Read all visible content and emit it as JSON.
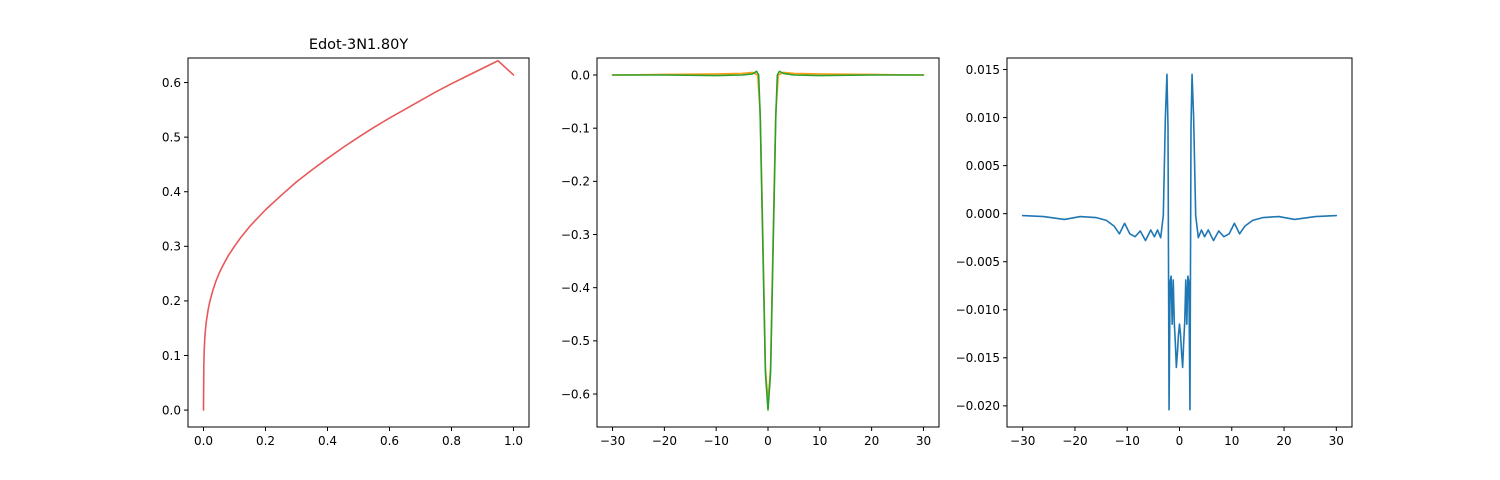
{
  "chart_data": [
    {
      "type": "line",
      "title": "Edot-3N1.80Y",
      "xlabel": "",
      "ylabel": "",
      "xlim": [
        -0.05,
        1.05
      ],
      "ylim": [
        -0.031,
        0.645
      ],
      "xticks": [
        0.0,
        0.2,
        0.4,
        0.6,
        0.8,
        1.0
      ],
      "xtick_labels": [
        "0.0",
        "0.2",
        "0.4",
        "0.6",
        "0.8",
        "1.0"
      ],
      "yticks": [
        0.0,
        0.1,
        0.2,
        0.3,
        0.4,
        0.5,
        0.6
      ],
      "ytick_labels": [
        "0.0",
        "0.1",
        "0.2",
        "0.3",
        "0.4",
        "0.5",
        "0.6"
      ],
      "grid": false,
      "legend": "none",
      "series": [
        {
          "color": "#e8585a",
          "x": [
            0,
            0.001,
            0.002,
            0.004,
            0.006,
            0.008,
            0.01,
            0.015,
            0.02,
            0.03,
            0.04,
            0.05,
            0.06,
            0.08,
            0.1,
            0.12,
            0.15,
            0.2,
            0.25,
            0.3,
            0.35,
            0.4,
            0.45,
            0.5,
            0.55,
            0.6,
            0.65,
            0.7,
            0.75,
            0.8,
            0.85,
            0.9,
            0.95,
            1.0
          ],
          "y": [
            0.0,
            0.08,
            0.105,
            0.13,
            0.145,
            0.157,
            0.166,
            0.184,
            0.198,
            0.219,
            0.236,
            0.25,
            0.262,
            0.283,
            0.3,
            0.316,
            0.337,
            0.367,
            0.393,
            0.418,
            0.44,
            0.461,
            0.481,
            0.5,
            0.518,
            0.535,
            0.551,
            0.567,
            0.583,
            0.598,
            0.612,
            0.626,
            0.64,
            0.614
          ]
        }
      ]
    },
    {
      "type": "line",
      "title": "",
      "xlabel": "",
      "ylabel": "",
      "xlim": [
        -33,
        33
      ],
      "ylim": [
        -0.662,
        0.032
      ],
      "xticks": [
        -30,
        -20,
        -10,
        0,
        10,
        20,
        30
      ],
      "xtick_labels": [
        "−30",
        "−20",
        "−10",
        "0",
        "10",
        "20",
        "30"
      ],
      "yticks": [
        0.0,
        -0.1,
        -0.2,
        -0.3,
        -0.4,
        -0.5,
        -0.6
      ],
      "ytick_labels": [
        "0.0",
        "−0.1",
        "−0.2",
        "−0.3",
        "−0.4",
        "−0.5",
        "−0.6"
      ],
      "grid": false,
      "legend": "none",
      "series": [
        {
          "color": "#ff9e1b",
          "x": [
            -30,
            -20,
            -10,
            -5,
            -3,
            -2,
            -1.5,
            -1,
            -0.5,
            0,
            0.5,
            1,
            1.5,
            2,
            3,
            5,
            10,
            20,
            30
          ],
          "y": [
            0.0,
            0.001,
            0.002,
            0.003,
            0.005,
            0.0,
            -0.07,
            -0.3,
            -0.55,
            -0.615,
            -0.55,
            -0.3,
            -0.07,
            0.0,
            0.005,
            0.003,
            0.002,
            0.001,
            0.0
          ]
        },
        {
          "color": "#2ca02c",
          "x": [
            -30,
            -20,
            -10,
            -5,
            -3,
            -2.2,
            -1.8,
            -1.5,
            -1,
            -0.5,
            0,
            0.5,
            1,
            1.5,
            1.8,
            2.2,
            3,
            5,
            10,
            20,
            30
          ],
          "y": [
            0.0,
            0.0,
            -0.001,
            0.0,
            0.002,
            0.007,
            0.0,
            -0.08,
            -0.32,
            -0.56,
            -0.63,
            -0.56,
            -0.32,
            -0.08,
            0.0,
            0.007,
            0.003,
            0.0,
            -0.001,
            0.0,
            0.0
          ]
        }
      ]
    },
    {
      "type": "line",
      "title": "",
      "xlabel": "",
      "ylabel": "",
      "xlim": [
        -33,
        33
      ],
      "ylim": [
        -0.0222,
        0.0162
      ],
      "xticks": [
        -30,
        -20,
        -10,
        0,
        10,
        20,
        30
      ],
      "xtick_labels": [
        "−30",
        "−20",
        "−10",
        "0",
        "10",
        "20",
        "30"
      ],
      "yticks": [
        0.015,
        0.01,
        0.005,
        0.0,
        -0.005,
        -0.01,
        -0.015,
        -0.02
      ],
      "ytick_labels": [
        "0.015",
        "0.010",
        "0.005",
        "0.000",
        "−0.005",
        "−0.010",
        "−0.015",
        "−0.020"
      ],
      "grid": false,
      "legend": "none",
      "series": [
        {
          "color": "#1f77b4",
          "x": [
            -30,
            -26,
            -22,
            -19,
            -16,
            -14,
            -12.5,
            -11.5,
            -10.5,
            -9.5,
            -8.5,
            -7.5,
            -6.5,
            -5.5,
            -4.8,
            -4.2,
            -3.6,
            -3.1,
            -2.7,
            -2.4,
            -2.2,
            -2.0,
            -1.8,
            -1.6,
            -1.4,
            -1.2,
            -1.0,
            -0.8,
            -0.6,
            -0.4,
            -0.2,
            0,
            0.2,
            0.4,
            0.6,
            0.8,
            1.0,
            1.2,
            1.4,
            1.6,
            1.8,
            2.0,
            2.2,
            2.4,
            2.7,
            3.1,
            3.6,
            4.2,
            4.8,
            5.5,
            6.5,
            7.5,
            8.5,
            9.5,
            10.5,
            11.5,
            12.5,
            14,
            16,
            19,
            22,
            26,
            30
          ],
          "y": [
            -0.0002,
            -0.0003,
            -0.0006,
            -0.0003,
            -0.0004,
            -0.0007,
            -0.0013,
            -0.0021,
            -0.001,
            -0.0021,
            -0.0024,
            -0.0018,
            -0.0028,
            -0.0017,
            -0.0024,
            -0.0017,
            -0.0025,
            -0.0002,
            0.0101,
            0.0145,
            0.009,
            -0.0204,
            -0.0071,
            -0.0065,
            -0.0115,
            -0.0069,
            -0.0113,
            -0.0134,
            -0.016,
            -0.0145,
            -0.0126,
            -0.0115,
            -0.0126,
            -0.0145,
            -0.016,
            -0.0134,
            -0.0113,
            -0.0069,
            -0.0115,
            -0.0065,
            -0.0071,
            -0.0204,
            0.009,
            0.0145,
            0.0101,
            -0.0002,
            -0.0025,
            -0.0017,
            -0.0024,
            -0.0017,
            -0.0028,
            -0.0018,
            -0.0024,
            -0.0021,
            -0.001,
            -0.0021,
            -0.0013,
            -0.0007,
            -0.0004,
            -0.0003,
            -0.0006,
            -0.0003,
            -0.0002
          ]
        }
      ]
    }
  ]
}
